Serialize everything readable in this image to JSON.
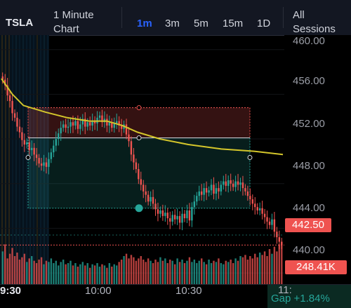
{
  "header": {
    "symbol": "TSLA",
    "interval_label": "1 Minute Chart",
    "timeframes": [
      {
        "label": "1m",
        "active": true
      },
      {
        "label": "3m",
        "active": false
      },
      {
        "label": "5m",
        "active": false
      },
      {
        "label": "15m",
        "active": false
      },
      {
        "label": "1D",
        "active": false
      }
    ],
    "sessions_label": "All Sessions"
  },
  "price_axis": {
    "ticks": [
      "460.00",
      "456.00",
      "452.00",
      "448.00",
      "444.00",
      "440.00"
    ],
    "last_price": "442.50",
    "last_volume": "248.41K"
  },
  "time_axis": {
    "ticks": [
      "9:30",
      "10:00",
      "10:30",
      "11:"
    ]
  },
  "gap": {
    "label": "Gap +1.84%"
  },
  "colors": {
    "up": "#26a69a",
    "down": "#ef5350",
    "ma_line": "#d4c62b",
    "background": "#000000",
    "accent": "#2962ff"
  },
  "chart_data": {
    "type": "candlestick",
    "symbol": "TSLA",
    "interval": "1m",
    "ylim": [
      439,
      461.3
    ],
    "last_price": 442.5,
    "last_volume_k": 248.41,
    "position_tool": {
      "entry": 452.1,
      "stop": 454.8,
      "target": 445.8
    },
    "moving_average": [
      [
        0,
        457.4
      ],
      [
        5,
        456.0
      ],
      [
        10,
        455.0
      ],
      [
        20,
        454.4
      ],
      [
        30,
        453.9
      ],
      [
        40,
        453.6
      ],
      [
        48,
        453.6
      ],
      [
        55,
        453.2
      ],
      [
        62,
        452.6
      ],
      [
        72,
        452.0
      ],
      [
        85,
        451.5
      ],
      [
        100,
        451.1
      ],
      [
        115,
        450.9
      ],
      [
        128,
        450.6
      ]
    ],
    "close_series": [
      457.3,
      456.8,
      455.9,
      455.4,
      454.3,
      453.9,
      453.1,
      452.6,
      451.9,
      451.5,
      451.7,
      451.0,
      451.2,
      450.6,
      450.3,
      449.8,
      449.6,
      449.9,
      449.5,
      450.2,
      450.8,
      451.4,
      452.0,
      452.5,
      453.0,
      453.3,
      453.0,
      453.1,
      453.5,
      453.2,
      453.6,
      452.9,
      453.3,
      453.8,
      453.1,
      453.5,
      453.2,
      453.6,
      453.4,
      453.9,
      454.1,
      453.5,
      453.8,
      453.2,
      453.5,
      453.0,
      453.4,
      453.6,
      453.2,
      452.9,
      453.3,
      452.4,
      451.8,
      450.6,
      449.9,
      449.3,
      448.4,
      447.9,
      447.3,
      447.0,
      446.4,
      446.8,
      446.2,
      445.7,
      445.3,
      445.6,
      445.1,
      445.4,
      444.9,
      444.6,
      445.2,
      444.8,
      445.1,
      444.5,
      445.3,
      444.9,
      445.6,
      444.7,
      445.9,
      446.4,
      446.9,
      447.3,
      447.0,
      447.6,
      447.2,
      447.4,
      447.9,
      447.1,
      447.6,
      447.3,
      447.9,
      448.2,
      447.8,
      448.3,
      448.0,
      447.7,
      448.2,
      447.9,
      448.1,
      447.6,
      447.3,
      446.9,
      446.6,
      446.2,
      445.9,
      445.6,
      445.8,
      445.3,
      445.0,
      444.6,
      444.3,
      444.8,
      443.7,
      443.2,
      442.8,
      442.5
    ],
    "volume_series": [
      28,
      34,
      22,
      26,
      31,
      24,
      27,
      21,
      23,
      26,
      19,
      22,
      24,
      20,
      18,
      21,
      23,
      17,
      20,
      19,
      22,
      18,
      20,
      16,
      19,
      21,
      17,
      18,
      20,
      16,
      18,
      15,
      17,
      19,
      16,
      18,
      14,
      17,
      16,
      18,
      15,
      17,
      16,
      14,
      18,
      15,
      17,
      16,
      19,
      21,
      24,
      26,
      22,
      25,
      23,
      20,
      22,
      24,
      21,
      19,
      22,
      20,
      18,
      21,
      19,
      23,
      20,
      22,
      18,
      21,
      20,
      17,
      22,
      19,
      21,
      18,
      20,
      23,
      19,
      21,
      18,
      20,
      22,
      19,
      17,
      21,
      18,
      20,
      19,
      22,
      18,
      17,
      20,
      19,
      21,
      18,
      22,
      20,
      24,
      23,
      25,
      21,
      24,
      22,
      26,
      23,
      27,
      25,
      28,
      24,
      30,
      26,
      32,
      28,
      34,
      36
    ]
  }
}
